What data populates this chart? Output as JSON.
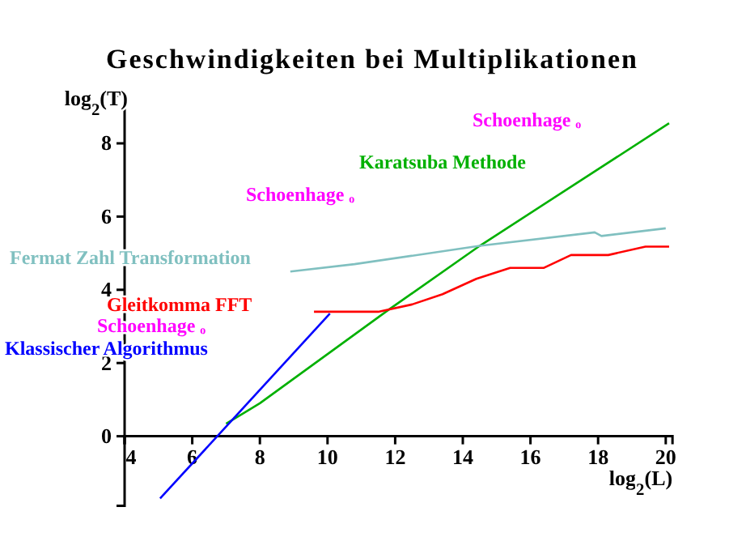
{
  "chart_data": {
    "type": "line",
    "title": "Geschwindigkeiten bei Multiplikationen",
    "xlabel": "log$_{2}$(L)",
    "ylabel": "log$_{2}$(T)",
    "xlim": [
      4,
      20.2
    ],
    "ylim": [
      -1.9,
      9.3
    ],
    "xticks": [
      4,
      6,
      8,
      10,
      12,
      14,
      16,
      18,
      20
    ],
    "yticks": [
      0,
      2,
      4,
      6,
      8
    ],
    "grid": false,
    "marker": "none",
    "line_style": "solid",
    "series": [
      {
        "name": "Karatsuba Methode",
        "color": "#00b000",
        "x": [
          7,
          8,
          11.8,
          14.5,
          20.1
        ],
        "values": [
          0.34,
          0.9,
          3.45,
          5.2,
          8.55
        ]
      },
      {
        "name": "Fermat Zahl Transformation",
        "color": "#80c0c0",
        "x": [
          8.9,
          10.8,
          14.5,
          17.9,
          18.1,
          20.0
        ],
        "values": [
          4.5,
          4.7,
          5.2,
          5.57,
          5.47,
          5.68
        ]
      },
      {
        "name": "Gleitkomma FFT",
        "color": "#ff0000",
        "x": [
          9.6,
          11.5,
          12.5,
          13.4,
          14.4,
          15.4,
          16.4,
          17.2,
          18.3,
          19.4,
          20.1
        ],
        "values": [
          3.4,
          3.4,
          3.6,
          3.88,
          4.3,
          4.6,
          4.6,
          4.95,
          4.95,
          5.18,
          5.18
        ]
      },
      {
        "name": "Klassischer Algorithmus",
        "color": "#0000ff",
        "x": [
          5.05,
          10.07
        ],
        "values": [
          -1.7,
          3.35
        ]
      }
    ],
    "annotations": [
      "Schoenhage ₒ",
      "Schoenhage ₒ",
      "Schoenhage ₒ"
    ]
  }
}
